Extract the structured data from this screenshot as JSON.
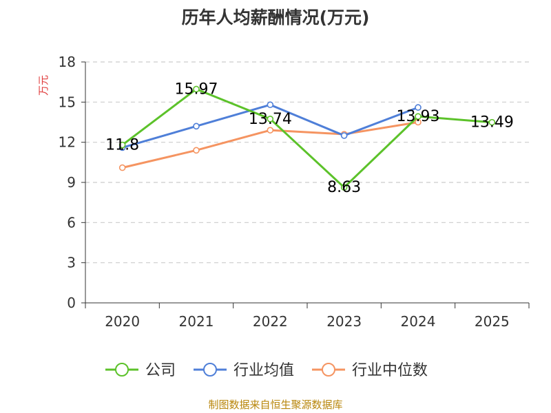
{
  "colors": {
    "title": "#333333",
    "axis": "#333333",
    "grid": "#cccccc",
    "ylabel": "#e03c3c",
    "source": "#b8860b"
  },
  "chart_data": {
    "type": "line",
    "title": "历年人均薪酬情况(万元)",
    "ylabel": "万元",
    "ylim": [
      0,
      18
    ],
    "yticks": [
      0,
      3,
      6,
      9,
      12,
      15,
      18
    ],
    "grid": true,
    "legend_position": "bottom",
    "categories": [
      "2020",
      "2021",
      "2022",
      "2023",
      "2024",
      "2025"
    ],
    "series": [
      {
        "name": "公司",
        "color": "#5cc22a",
        "values": [
          11.8,
          15.97,
          13.74,
          8.63,
          13.93,
          13.49
        ],
        "show_labels": true
      },
      {
        "name": "行业均值",
        "color": "#4f7fd8",
        "values": [
          11.6,
          13.2,
          14.8,
          12.5,
          14.6,
          null
        ],
        "show_labels": false
      },
      {
        "name": "行业中位数",
        "color": "#f59461",
        "values": [
          10.1,
          11.4,
          12.9,
          12.6,
          13.5,
          null
        ],
        "show_labels": false
      }
    ]
  },
  "source_note": "制图数据来自恒生聚源数据库"
}
